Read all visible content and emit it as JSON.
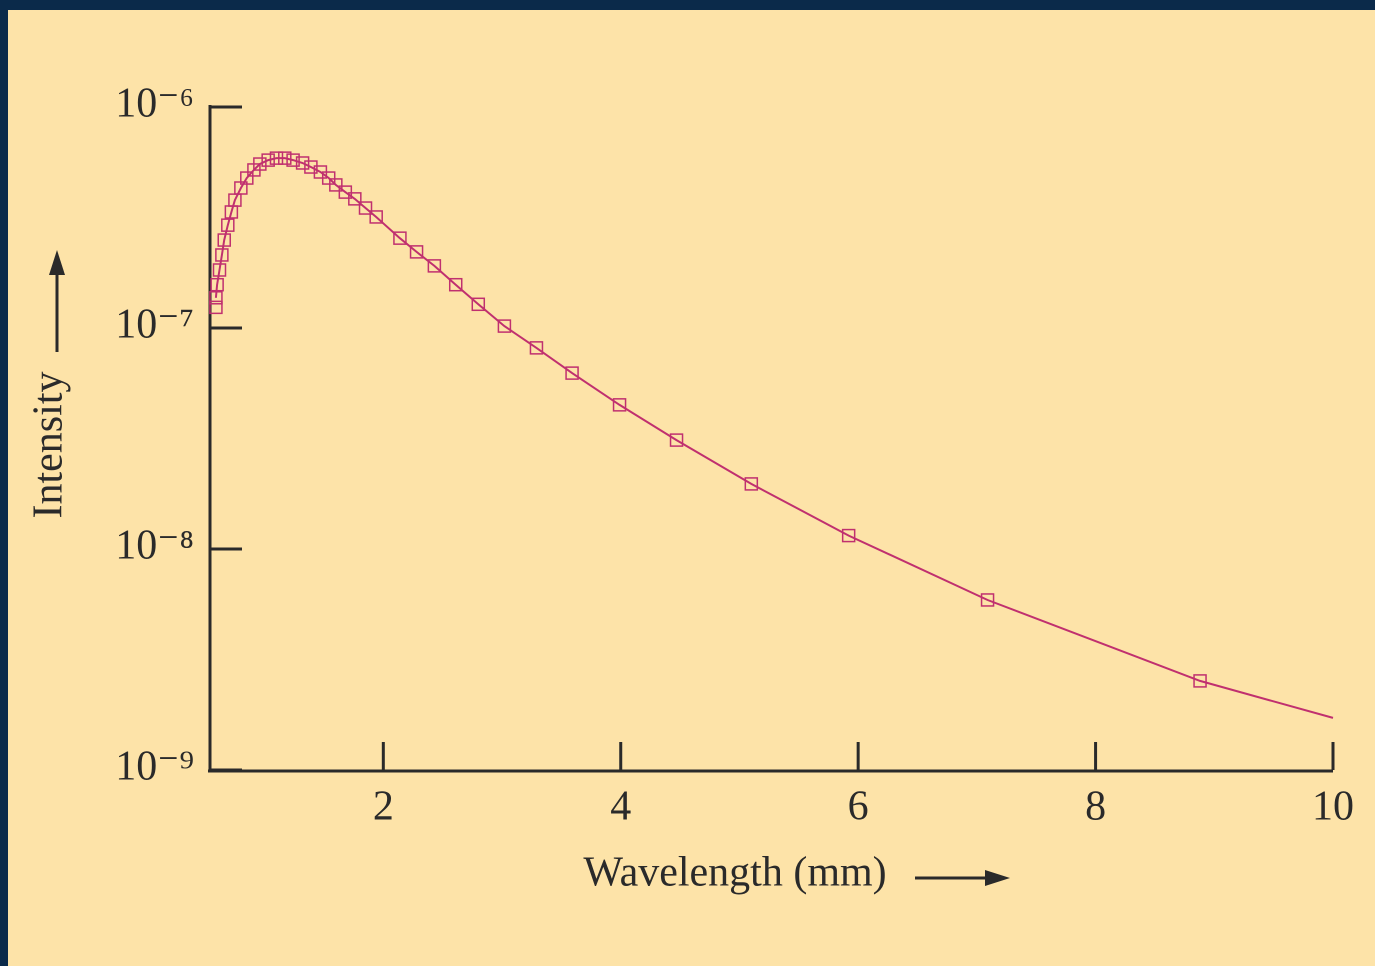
{
  "chart_data": {
    "type": "scatter-line",
    "xlabel": "Wavelength (mm)",
    "ylabel": "Intensity",
    "xlim": [
      0.54,
      10
    ],
    "xticks": [
      2,
      4,
      6,
      8,
      10
    ],
    "ylim": [
      1e-09,
      1e-06
    ],
    "ylog": true,
    "yticks": [
      {
        "value": 1e-09,
        "label": "10⁻⁹"
      },
      {
        "value": 1e-08,
        "label": "10⁻⁸"
      },
      {
        "value": 1e-07,
        "label": "10⁻⁷"
      },
      {
        "value": 1e-06,
        "label": "10⁻⁶"
      }
    ],
    "series": [
      {
        "mode": "markers",
        "color": "#c0306f",
        "x": [
          0.59,
          0.59,
          0.6,
          0.62,
          0.64,
          0.66,
          0.69,
          0.72,
          0.75,
          0.8,
          0.85,
          0.91,
          0.96,
          1.03,
          1.1,
          1.17,
          1.24,
          1.32,
          1.39,
          1.47,
          1.54,
          1.6,
          1.68,
          1.76,
          1.85,
          1.94,
          2.14,
          2.28,
          2.43,
          2.61,
          2.8,
          3.02,
          3.29,
          3.59,
          3.99,
          4.47,
          5.1,
          5.92,
          7.09,
          8.88
        ],
        "values": [
          1.24e-07,
          1.37e-07,
          1.57e-07,
          1.83e-07,
          2.14e-07,
          2.5e-07,
          2.92e-07,
          3.35e-07,
          3.79e-07,
          4.3e-07,
          4.77e-07,
          5.19e-07,
          5.52e-07,
          5.75e-07,
          5.87e-07,
          5.87e-07,
          5.75e-07,
          5.58e-07,
          5.35e-07,
          5.08e-07,
          4.77e-07,
          4.44e-07,
          4.12e-07,
          3.84e-07,
          3.49e-07,
          3.18e-07,
          2.55e-07,
          2.21e-07,
          1.91e-07,
          1.57e-07,
          1.28e-07,
          1.02e-07,
          8.13e-08,
          6.25e-08,
          4.49e-08,
          3.11e-08,
          1.97e-08,
          1.15e-08,
          5.88e-09,
          2.53e-09
        ]
      },
      {
        "mode": "line",
        "color": "#c0306f",
        "x": [
          0.59,
          0.6,
          0.62,
          0.64,
          0.66,
          0.69,
          0.72,
          0.75,
          0.8,
          0.85,
          0.91,
          0.96,
          1.03,
          1.1,
          1.17,
          1.24,
          1.32,
          1.39,
          1.47,
          1.54,
          1.6,
          1.68,
          1.76,
          1.85,
          1.94,
          2.14,
          2.28,
          2.43,
          2.61,
          2.8,
          3.02,
          3.29,
          3.59,
          3.99,
          4.47,
          5.1,
          5.92,
          7.09,
          8.88,
          10
        ],
        "values": [
          1.37e-07,
          1.57e-07,
          1.83e-07,
          2.14e-07,
          2.5e-07,
          2.92e-07,
          3.35e-07,
          3.79e-07,
          4.3e-07,
          4.77e-07,
          5.19e-07,
          5.52e-07,
          5.75e-07,
          5.87e-07,
          5.87e-07,
          5.75e-07,
          5.58e-07,
          5.35e-07,
          5.08e-07,
          4.77e-07,
          4.44e-07,
          4.12e-07,
          3.84e-07,
          3.49e-07,
          3.18e-07,
          2.55e-07,
          2.21e-07,
          1.91e-07,
          1.57e-07,
          1.28e-07,
          1.02e-07,
          8.13e-08,
          6.25e-08,
          4.49e-08,
          3.11e-08,
          1.97e-08,
          1.15e-08,
          5.88e-09,
          2.53e-09,
          1.72e-09
        ]
      }
    ]
  }
}
